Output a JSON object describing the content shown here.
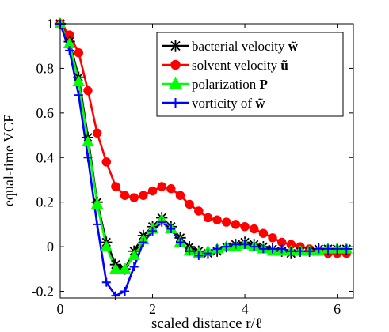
{
  "chart_data": {
    "type": "line",
    "xlabel": "scaled distance r/ℓ",
    "ylabel": "equal-time VCF",
    "xlim": [
      0,
      6.35
    ],
    "ylim": [
      -0.23,
      1.0
    ],
    "x_ticks": [
      0,
      2,
      4,
      6
    ],
    "y_ticks": [
      1,
      0.8,
      0.6,
      0.4,
      0.2,
      0,
      -0.2
    ],
    "x_tick_labels": [
      "0",
      "2",
      "4",
      "6"
    ],
    "y_tick_labels": [
      "1",
      "0.8",
      "0.6",
      "0.4",
      "0.2",
      "0",
      "-0.2"
    ],
    "grid": false,
    "legend_position": "top-right",
    "series": [
      {
        "name": "bacterial velocity w̃",
        "color": "#000000",
        "marker": "asterisk",
        "x": [
          0.0,
          0.2,
          0.4,
          0.6,
          0.8,
          1.0,
          1.2,
          1.4,
          1.6,
          1.8,
          2.0,
          2.2,
          2.4,
          2.6,
          2.8,
          3.0,
          3.2,
          3.4,
          3.6,
          3.8,
          4.0,
          4.2,
          4.4,
          4.6,
          4.8,
          5.0,
          5.2,
          5.4,
          5.6,
          5.8,
          6.0,
          6.2
        ],
        "values": [
          1.0,
          0.92,
          0.76,
          0.49,
          0.2,
          0.02,
          -0.08,
          -0.1,
          -0.02,
          0.05,
          0.09,
          0.13,
          0.09,
          0.04,
          0.0,
          -0.02,
          -0.03,
          -0.02,
          0.0,
          0.01,
          0.02,
          0.01,
          0.0,
          -0.01,
          -0.02,
          -0.03,
          -0.02,
          -0.02,
          -0.01,
          -0.01,
          -0.01,
          -0.01
        ]
      },
      {
        "name": "solvent velocity ũ",
        "color": "#ff0000",
        "marker": "circle",
        "x": [
          0.0,
          0.2,
          0.4,
          0.6,
          0.8,
          1.0,
          1.2,
          1.4,
          1.6,
          1.8,
          2.0,
          2.2,
          2.4,
          2.6,
          2.8,
          3.0,
          3.2,
          3.4,
          3.6,
          3.8,
          4.0,
          4.2,
          4.4,
          4.6,
          4.8,
          5.0,
          5.2,
          5.4,
          5.6,
          5.8,
          6.0,
          6.2
        ],
        "values": [
          1.0,
          0.95,
          0.87,
          0.7,
          0.51,
          0.38,
          0.27,
          0.23,
          0.22,
          0.23,
          0.25,
          0.27,
          0.26,
          0.23,
          0.19,
          0.16,
          0.13,
          0.12,
          0.11,
          0.1,
          0.09,
          0.08,
          0.06,
          0.04,
          0.02,
          0.01,
          0.0,
          -0.01,
          -0.02,
          -0.03,
          -0.03,
          -0.03
        ]
      },
      {
        "name": "polarization P",
        "color": "#00ff00",
        "marker": "triangle",
        "x": [
          0.0,
          0.2,
          0.4,
          0.6,
          0.8,
          1.0,
          1.2,
          1.4,
          1.6,
          1.8,
          2.0,
          2.2,
          2.4,
          2.6,
          2.8,
          3.0,
          3.2,
          3.4,
          3.6,
          3.8,
          4.0,
          4.2,
          4.4,
          4.6,
          4.8,
          5.0,
          5.2,
          5.4,
          5.6,
          5.8,
          6.0,
          6.2
        ],
        "values": [
          1.0,
          0.91,
          0.74,
          0.47,
          0.19,
          0.0,
          -0.1,
          -0.1,
          -0.04,
          0.03,
          0.08,
          0.12,
          0.08,
          0.02,
          -0.02,
          -0.03,
          -0.02,
          -0.01,
          0.0,
          0.0,
          0.01,
          0.0,
          -0.01,
          -0.02,
          -0.02,
          -0.02,
          -0.02,
          -0.02,
          -0.02,
          -0.01,
          -0.01,
          -0.01
        ]
      },
      {
        "name": "vorticity of w̃",
        "color": "#0000ff",
        "marker": "plus",
        "x": [
          0.0,
          0.2,
          0.4,
          0.6,
          0.8,
          1.0,
          1.2,
          1.4,
          1.6,
          1.8,
          2.0,
          2.2,
          2.4,
          2.6,
          2.8,
          3.0,
          3.2,
          3.4,
          3.6,
          3.8,
          4.0,
          4.2,
          4.4,
          4.6,
          4.8,
          5.0,
          5.2,
          5.4,
          5.6,
          5.8,
          6.0,
          6.2
        ],
        "values": [
          1.0,
          0.88,
          0.68,
          0.4,
          0.1,
          -0.16,
          -0.22,
          -0.2,
          -0.09,
          0.02,
          0.07,
          0.11,
          0.08,
          0.02,
          -0.02,
          -0.04,
          -0.03,
          -0.01,
          0.0,
          0.01,
          0.01,
          0.0,
          -0.01,
          -0.01,
          -0.01,
          -0.02,
          -0.02,
          -0.02,
          -0.01,
          -0.01,
          -0.01,
          -0.01
        ]
      }
    ],
    "legend_entries": [
      {
        "plain": "bacterial velocity ",
        "bold": "w̃"
      },
      {
        "plain": "solvent velocity ",
        "bold": "ũ"
      },
      {
        "plain": "polarization ",
        "bold": "P"
      },
      {
        "plain": "vorticity of ",
        "bold": "w̃"
      }
    ]
  }
}
